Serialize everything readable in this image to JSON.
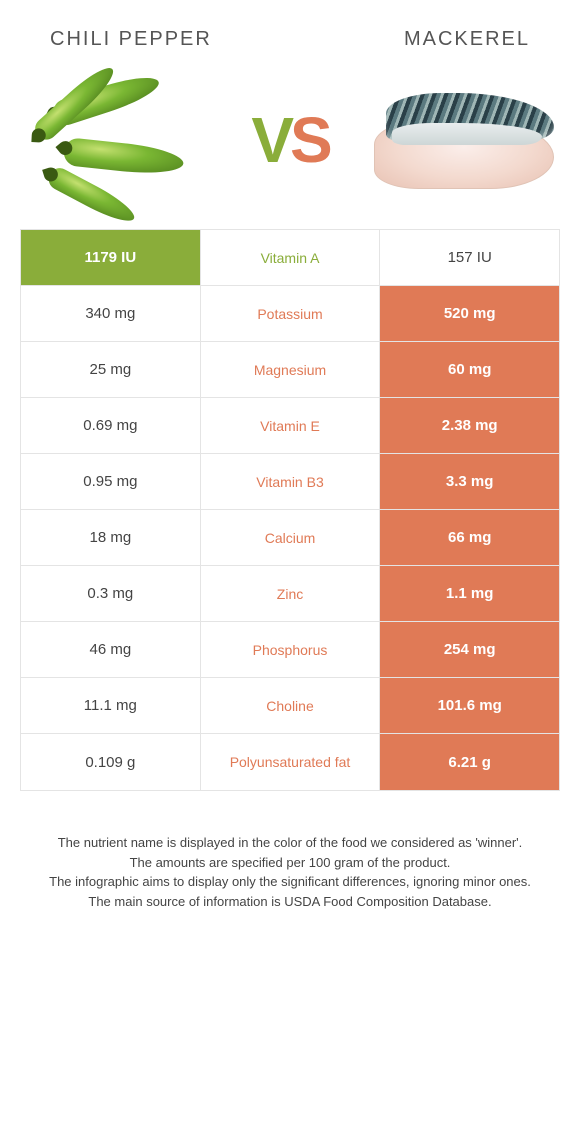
{
  "header": {
    "left_title": "CHILI PEPPER",
    "right_title": "MACKEREL",
    "vs_v": "V",
    "vs_s": "S"
  },
  "colors": {
    "left": "#8aad3a",
    "right": "#e07a56",
    "row_border": "#e4e4e4",
    "background": "#ffffff"
  },
  "rows": [
    {
      "nutrient": "Vitamin A",
      "left": "1179 IU",
      "right": "157 IU",
      "winner": "left"
    },
    {
      "nutrient": "Potassium",
      "left": "340 mg",
      "right": "520 mg",
      "winner": "right"
    },
    {
      "nutrient": "Magnesium",
      "left": "25 mg",
      "right": "60 mg",
      "winner": "right"
    },
    {
      "nutrient": "Vitamin E",
      "left": "0.69 mg",
      "right": "2.38 mg",
      "winner": "right"
    },
    {
      "nutrient": "Vitamin B3",
      "left": "0.95 mg",
      "right": "3.3 mg",
      "winner": "right"
    },
    {
      "nutrient": "Calcium",
      "left": "18 mg",
      "right": "66 mg",
      "winner": "right"
    },
    {
      "nutrient": "Zinc",
      "left": "0.3 mg",
      "right": "1.1 mg",
      "winner": "right"
    },
    {
      "nutrient": "Phosphorus",
      "left": "46 mg",
      "right": "254 mg",
      "winner": "right"
    },
    {
      "nutrient": "Choline",
      "left": "11.1 mg",
      "right": "101.6 mg",
      "winner": "right"
    },
    {
      "nutrient": "Polyunsaturated fat",
      "left": "0.109 g",
      "right": "6.21 g",
      "winner": "right"
    }
  ],
  "footer": {
    "line1": "The nutrient name is displayed in the color of the food we considered as 'winner'.",
    "line2": "The amounts are specified per 100 gram of the product.",
    "line3": "The infographic aims to display only the significant differences, ignoring minor ones.",
    "line4": "The main source of information is USDA Food Composition Database."
  }
}
